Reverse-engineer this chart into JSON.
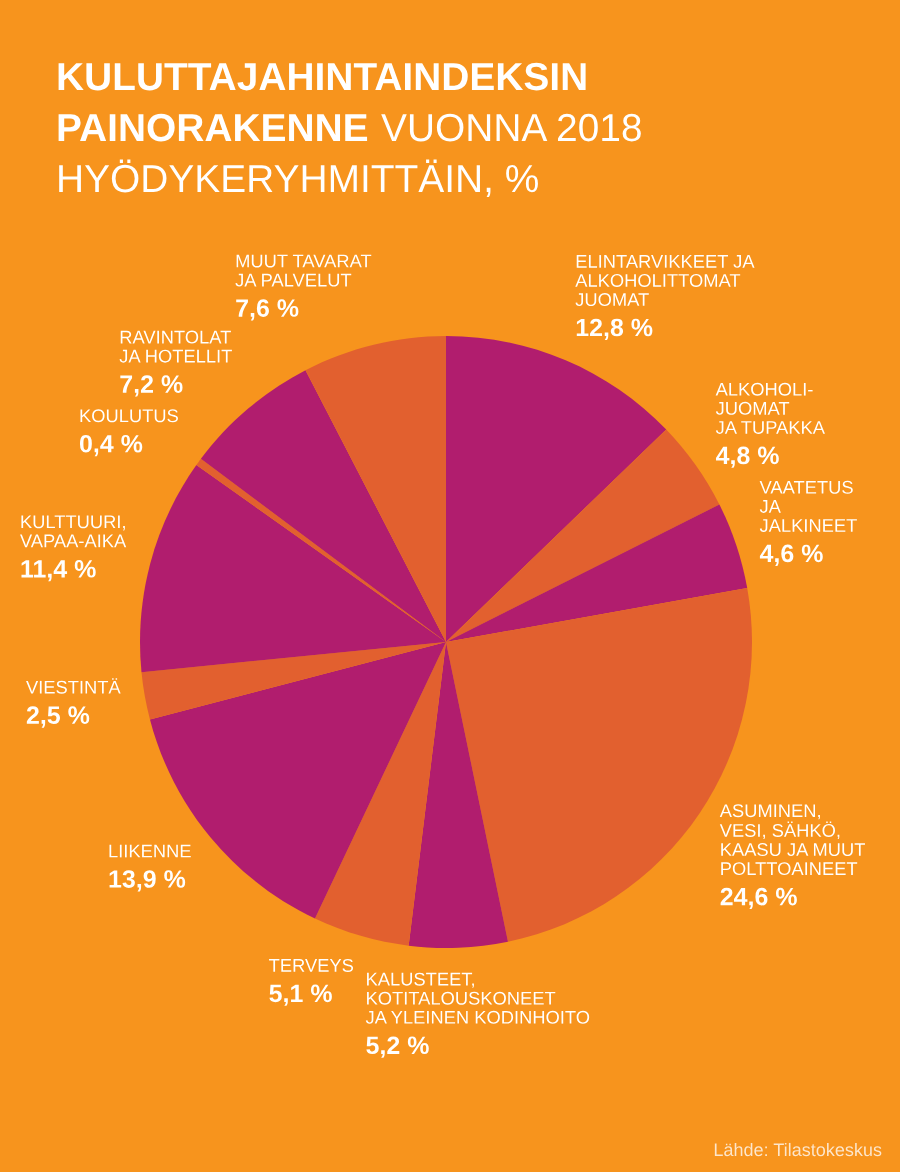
{
  "chart_data": {
    "type": "pie",
    "title": "KULUTTAJAHINTAINDEKSIN\nPAINORAKENNE",
    "subtitle": "VUONNA 2018\nHYÖDYKERYHMITTÄIN, %",
    "categories": [
      "ELINTARVIKKEET JA\nALKOHOLITTOMAT\nJUOMAT",
      "ALKOHOLI-\nJUOMAT\nJA TUPAKKA",
      "VAATETUS\nJA\nJALKINEET",
      "ASUMINEN,\nVESI, SÄHKÖ,\nKAASU JA MUUT\nPOLTTOAINEET",
      "KALUSTEET,\nKOTITALOUSKONEET\nJA YLEINEN KODINHOITO",
      "TERVEYS",
      "LIIKENNE",
      "VIESTINTÄ",
      "KULTTUURI,\nVAPAA-AIKA",
      "KOULUTUS",
      "RAVINTOLAT\nJA HOTELLIT",
      "MUUT TAVARAT\nJA PALVELUT"
    ],
    "values": [
      12.8,
      4.8,
      4.6,
      24.6,
      5.2,
      5.1,
      13.9,
      2.5,
      11.4,
      0.4,
      7.2,
      7.6
    ],
    "value_labels": [
      "12,8 %",
      "4,8 %",
      "4,6 %",
      "24,6 %",
      "5,2 %",
      "5,1 %",
      "13,9 %",
      "2,5 %",
      "11,4 %",
      "0,4 %",
      "7,2 %",
      "7,6 %"
    ],
    "colors": [
      "#b11d6e",
      "#e2602f",
      "#b11d6e",
      "#e2602f",
      "#b11d6e",
      "#e2602f",
      "#b11d6e",
      "#e2602f",
      "#b11d6e",
      "#e2602f",
      "#b11d6e",
      "#e2602f"
    ],
    "annotations": [
      "Lähde: Tilastokeskus"
    ]
  }
}
